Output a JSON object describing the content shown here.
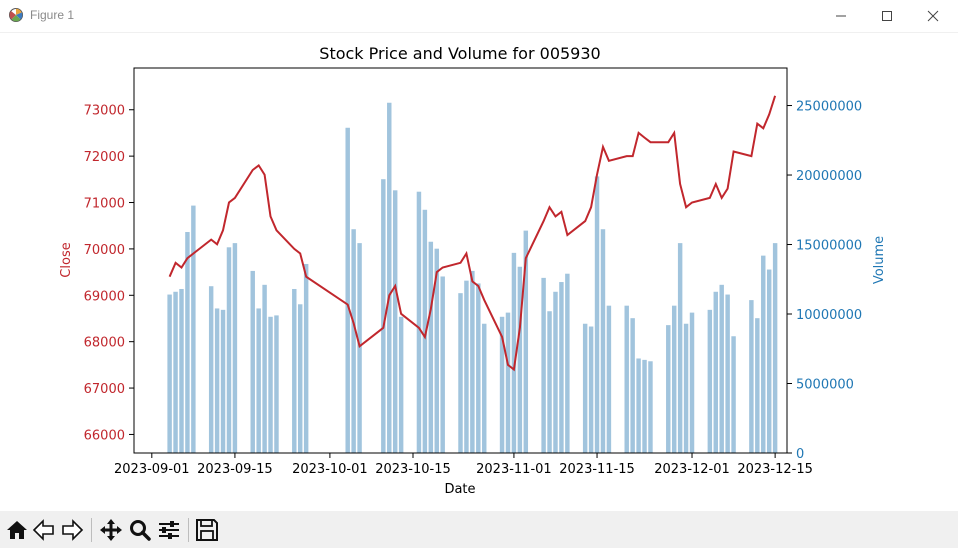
{
  "window": {
    "title": "Figure 1"
  },
  "toolbar": {
    "buttons": [
      {
        "name": "home-button",
        "icon": "home-icon"
      },
      {
        "name": "back-button",
        "icon": "back-arrow-icon"
      },
      {
        "name": "forward-button",
        "icon": "forward-arrow-icon"
      },
      {
        "name": "pan-button",
        "icon": "move-icon"
      },
      {
        "name": "zoom-button",
        "icon": "zoom-icon"
      },
      {
        "name": "configure-subplots-button",
        "icon": "sliders-icon"
      },
      {
        "name": "save-button",
        "icon": "save-icon"
      }
    ]
  },
  "chart_data": {
    "type": "line",
    "title": "Stock Price and Volume for 005930",
    "xlabel": "Date",
    "ylabel": "Close",
    "y2label": "Volume",
    "xlim": [
      "2023-08-29",
      "2023-12-17"
    ],
    "ylim": [
      65600,
      73900
    ],
    "y2lim": [
      0,
      27700000
    ],
    "x_ticks": [
      "2023-09-01",
      "2023-09-15",
      "2023-10-01",
      "2023-10-15",
      "2023-11-01",
      "2023-11-15",
      "2023-12-01",
      "2023-12-15"
    ],
    "y_ticks": [
      66000,
      67000,
      68000,
      69000,
      70000,
      71000,
      72000,
      73000
    ],
    "y2_ticks": [
      0,
      5000000,
      10000000,
      15000000,
      20000000,
      25000000
    ],
    "colors": {
      "close": "#c1272d",
      "volume": "#8ab5d4",
      "y2axis": "#1f77b4"
    },
    "series": [
      {
        "name": "Close",
        "axis": "left",
        "chart": "line",
        "x": [
          "2023-09-04",
          "2023-09-05",
          "2023-09-06",
          "2023-09-07",
          "2023-09-08",
          "2023-09-11",
          "2023-09-12",
          "2023-09-13",
          "2023-09-14",
          "2023-09-15",
          "2023-09-18",
          "2023-09-19",
          "2023-09-20",
          "2023-09-21",
          "2023-09-22",
          "2023-09-25",
          "2023-09-26",
          "2023-09-27",
          "2023-10-04",
          "2023-10-05",
          "2023-10-06",
          "2023-10-10",
          "2023-10-11",
          "2023-10-12",
          "2023-10-13",
          "2023-10-16",
          "2023-10-17",
          "2023-10-18",
          "2023-10-19",
          "2023-10-20",
          "2023-10-23",
          "2023-10-24",
          "2023-10-25",
          "2023-10-26",
          "2023-10-27",
          "2023-10-30",
          "2023-10-31",
          "2023-11-01",
          "2023-11-02",
          "2023-11-03",
          "2023-11-06",
          "2023-11-07",
          "2023-11-08",
          "2023-11-09",
          "2023-11-10",
          "2023-11-13",
          "2023-11-14",
          "2023-11-15",
          "2023-11-16",
          "2023-11-17",
          "2023-11-20",
          "2023-11-21",
          "2023-11-22",
          "2023-11-23",
          "2023-11-24",
          "2023-11-27",
          "2023-11-28",
          "2023-11-29",
          "2023-11-30",
          "2023-12-01",
          "2023-12-04",
          "2023-12-05",
          "2023-12-06",
          "2023-12-07",
          "2023-12-08",
          "2023-12-11",
          "2023-12-12",
          "2023-12-13",
          "2023-12-14",
          "2023-12-15"
        ],
        "values": [
          69400,
          69700,
          69600,
          69800,
          69900,
          70200,
          70100,
          70400,
          71000,
          71100,
          71700,
          71800,
          71600,
          70700,
          70400,
          70000,
          69900,
          69400,
          68800,
          68400,
          67900,
          68300,
          69000,
          69200,
          68600,
          68300,
          68100,
          68700,
          69500,
          69600,
          69700,
          69900,
          69300,
          69200,
          68900,
          68100,
          67500,
          67400,
          68300,
          69800,
          70600,
          70900,
          70700,
          70800,
          70300,
          70600,
          70900,
          71600,
          72200,
          71900,
          72000,
          72000,
          72500,
          72400,
          72300,
          72300,
          72500,
          71400,
          70900,
          71000,
          71100,
          71400,
          71100,
          71300,
          72100,
          72000,
          72700,
          72600,
          72900,
          73300
        ]
      },
      {
        "name": "Volume",
        "axis": "right",
        "chart": "bar",
        "x": [
          "2023-09-04",
          "2023-09-05",
          "2023-09-06",
          "2023-09-07",
          "2023-09-08",
          "2023-09-11",
          "2023-09-12",
          "2023-09-13",
          "2023-09-14",
          "2023-09-15",
          "2023-09-18",
          "2023-09-19",
          "2023-09-20",
          "2023-09-21",
          "2023-09-22",
          "2023-09-25",
          "2023-09-26",
          "2023-09-27",
          "2023-10-04",
          "2023-10-05",
          "2023-10-06",
          "2023-10-10",
          "2023-10-11",
          "2023-10-12",
          "2023-10-13",
          "2023-10-16",
          "2023-10-17",
          "2023-10-18",
          "2023-10-19",
          "2023-10-20",
          "2023-10-23",
          "2023-10-24",
          "2023-10-25",
          "2023-10-26",
          "2023-10-27",
          "2023-10-30",
          "2023-10-31",
          "2023-11-01",
          "2023-11-02",
          "2023-11-03",
          "2023-11-06",
          "2023-11-07",
          "2023-11-08",
          "2023-11-09",
          "2023-11-10",
          "2023-11-13",
          "2023-11-14",
          "2023-11-15",
          "2023-11-16",
          "2023-11-17",
          "2023-11-20",
          "2023-11-21",
          "2023-11-22",
          "2023-11-23",
          "2023-11-24",
          "2023-11-27",
          "2023-11-28",
          "2023-11-29",
          "2023-11-30",
          "2023-12-01",
          "2023-12-04",
          "2023-12-05",
          "2023-12-06",
          "2023-12-07",
          "2023-12-08",
          "2023-12-11",
          "2023-12-12",
          "2023-12-13",
          "2023-12-14",
          "2023-12-15"
        ],
        "values": [
          11400000,
          11600000,
          11800000,
          15900000,
          17800000,
          12000000,
          10400000,
          10300000,
          14800000,
          15100000,
          13100000,
          10400000,
          12100000,
          9800000,
          9900000,
          11800000,
          10700000,
          13600000,
          23400000,
          16100000,
          15100000,
          19700000,
          25200000,
          18900000,
          9800000,
          18800000,
          17500000,
          15200000,
          14700000,
          12700000,
          11500000,
          12400000,
          13100000,
          12200000,
          9300000,
          9800000,
          10100000,
          14400000,
          13400000,
          16000000,
          12600000,
          10200000,
          11600000,
          12300000,
          12900000,
          9300000,
          9100000,
          19900000,
          16100000,
          10600000,
          10600000,
          9700000,
          6800000,
          6700000,
          6600000,
          9200000,
          10600000,
          15100000,
          9300000,
          10100000,
          10300000,
          11600000,
          12100000,
          11400000,
          8400000,
          11000000,
          9700000,
          14200000,
          13200000,
          15100000
        ]
      }
    ]
  }
}
